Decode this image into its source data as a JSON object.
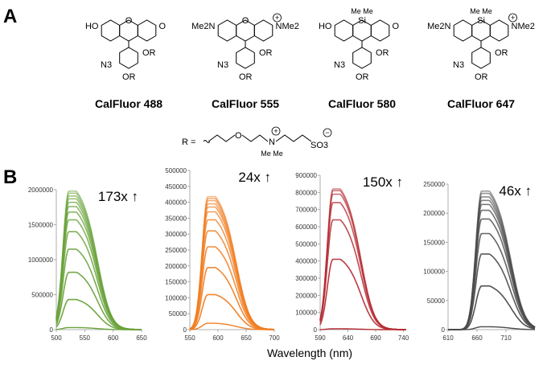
{
  "panel_a": {
    "label": "A",
    "compounds": [
      {
        "name": "CalFluor 488",
        "left_group": "HO",
        "right_group": "O",
        "bridge": "O",
        "si_methyls": "",
        "charge": ""
      },
      {
        "name": "CalFluor 555",
        "left_group": "Me2N",
        "right_group": "NMe2",
        "bridge": "O",
        "si_methyls": "",
        "charge": "+"
      },
      {
        "name": "CalFluor 580",
        "left_group": "HO",
        "right_group": "O",
        "bridge": "Si",
        "si_methyls": "Me Me",
        "charge": ""
      },
      {
        "name": "CalFluor 647",
        "left_group": "Me2N",
        "right_group": "NMe2",
        "bridge": "Si",
        "si_methyls": "Me Me",
        "charge": "+"
      }
    ],
    "substituents": {
      "azide": "N3",
      "or_group": "OR"
    },
    "r_group": {
      "prefix": "R =",
      "n_methyls": "Me Me",
      "sulfonate": "SO3",
      "plus": "+",
      "minus": "−"
    }
  },
  "panel_b": {
    "label": "B",
    "xlabel": "Wavelength (nm)"
  },
  "colors": {
    "green": "#6aa33b",
    "orange": "#f07f24",
    "red": "#b52a32",
    "gray": "#4a4a4a"
  },
  "chart_data": [
    {
      "type": "line",
      "annotation": "173x ↑",
      "xlim": [
        500,
        650
      ],
      "xticks": [
        500,
        550,
        600,
        650
      ],
      "ylim": [
        0,
        2000000
      ],
      "yticks": [
        0,
        500000,
        1000000,
        1500000,
        2000000
      ],
      "peak_x": 522,
      "series_peaks": [
        30000,
        430000,
        820000,
        1150000,
        1400000,
        1570000,
        1680000,
        1760000,
        1820000,
        1870000,
        1910000,
        1950000,
        1980000
      ],
      "color": "#6aa33b"
    },
    {
      "type": "line",
      "annotation": "24x ↑",
      "xlim": [
        550,
        700
      ],
      "xticks": [
        550,
        600,
        650,
        700
      ],
      "ylim": [
        0,
        500000
      ],
      "yticks": [
        0,
        50000,
        100000,
        150000,
        200000,
        250000,
        300000,
        350000,
        400000,
        450000,
        500000
      ],
      "peak_x": 582,
      "series_peaks": [
        20000,
        110000,
        195000,
        260000,
        310000,
        345000,
        370000,
        385000,
        395000,
        405000,
        412000,
        418000
      ],
      "color": "#f07f24"
    },
    {
      "type": "line",
      "annotation": "150x ↑",
      "xlim": [
        590,
        745
      ],
      "xticks": [
        590,
        640,
        690,
        740
      ],
      "ylim": [
        0,
        900000
      ],
      "yticks": [
        0,
        100000,
        200000,
        300000,
        400000,
        500000,
        600000,
        700000,
        800000,
        900000
      ],
      "peak_x": 613,
      "series_peaks": [
        5000,
        410000,
        640000,
        740000,
        790000,
        810000,
        820000
      ],
      "color": "#b52a32"
    },
    {
      "type": "line",
      "annotation": "46x ↑",
      "xlim": [
        610,
        760
      ],
      "xticks": [
        610,
        660,
        710
      ],
      "ylim": [
        0,
        250000
      ],
      "yticks": [
        0,
        50000,
        100000,
        150000,
        200000,
        250000
      ],
      "peak_x": 668,
      "series_peaks": [
        5000,
        75000,
        130000,
        165000,
        190000,
        205000,
        215000,
        222000,
        228000,
        234000,
        238000
      ],
      "color": "#4a4a4a"
    }
  ]
}
